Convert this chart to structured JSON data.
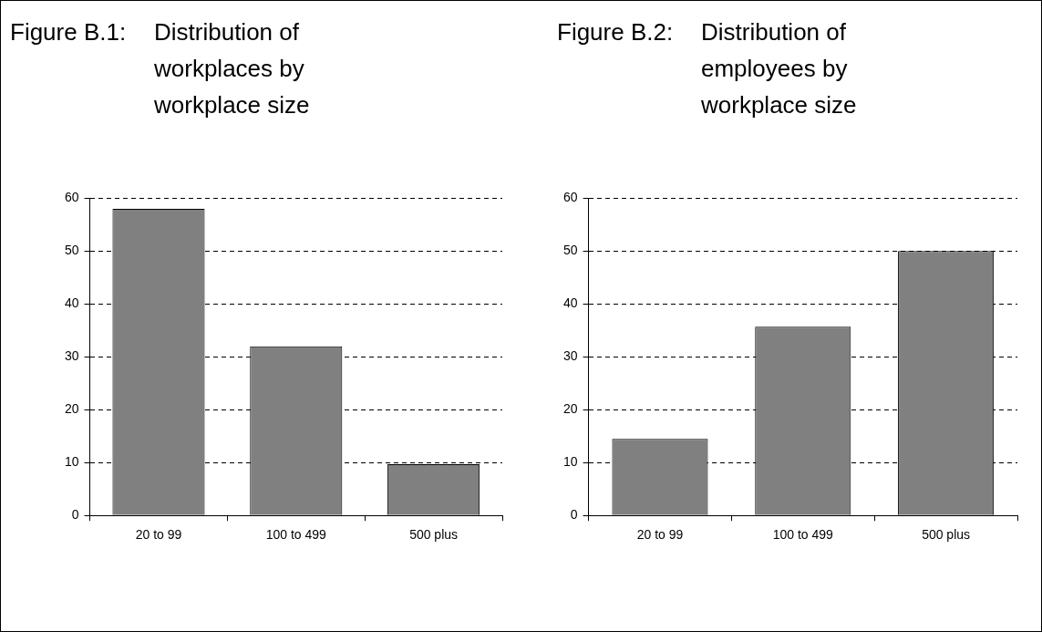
{
  "chart_data": [
    {
      "type": "bar",
      "title": "Figure B.1: Distribution of workplaces by workplace size",
      "categories": [
        "20 to 99",
        "100 to 499",
        "500 plus"
      ],
      "values": [
        58,
        32,
        9.7
      ],
      "color": "#808080",
      "ylim": [
        0,
        60
      ],
      "yticks": [
        0,
        10,
        20,
        30,
        40,
        50,
        60
      ],
      "grid": "y",
      "legend": false
    },
    {
      "type": "bar",
      "title": "Figure B.2: Distribution of employees by workplace size",
      "categories": [
        "20 to 99",
        "100 to 499",
        "500 plus"
      ],
      "values": [
        14.5,
        35.7,
        50
      ],
      "color": "#808080",
      "ylim": [
        0,
        60
      ],
      "yticks": [
        0,
        10,
        20,
        30,
        40,
        50,
        60
      ],
      "grid": "y",
      "legend": false
    }
  ]
}
